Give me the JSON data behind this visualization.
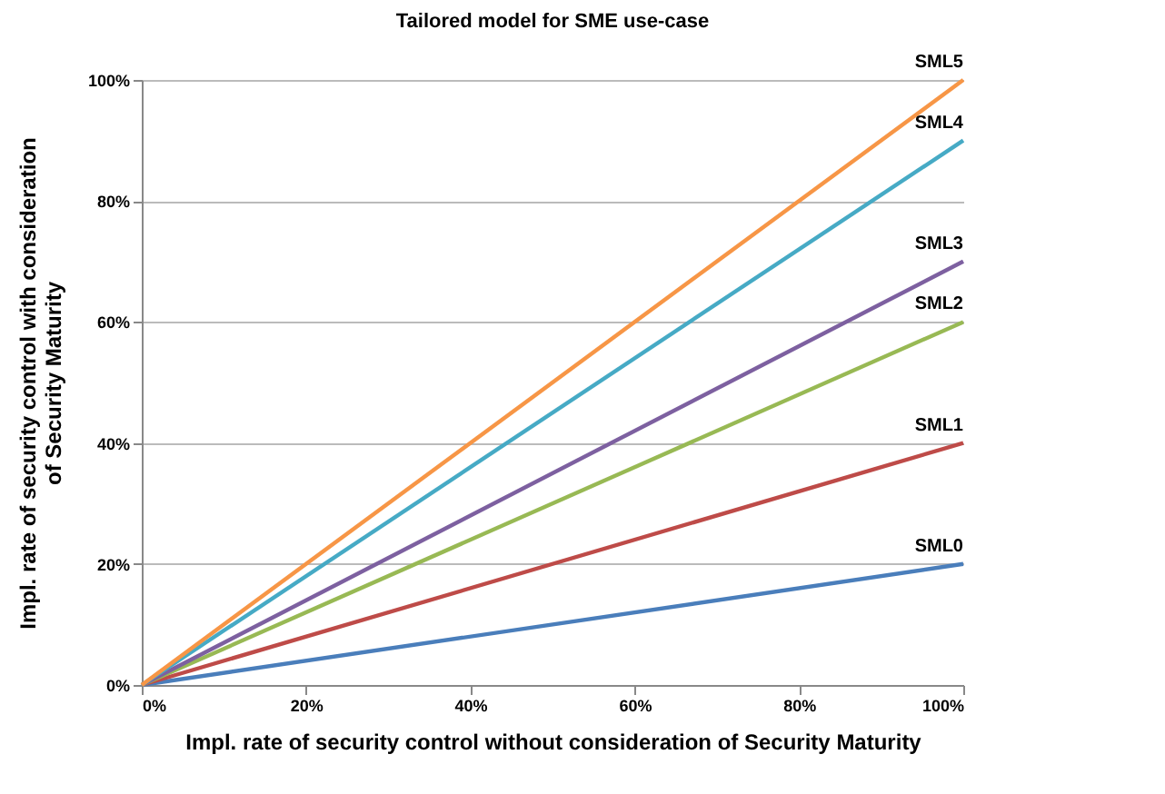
{
  "chart_data": {
    "type": "line",
    "title": "Tailored model for SME use-case",
    "xlabel": "Impl. rate of security control without consideration of Security Maturity",
    "ylabel": "Impl. rate of security control with  consideration of Security Maturity",
    "x": [
      0,
      100
    ],
    "series": [
      {
        "name": "SML0",
        "color": "#4a7ebb",
        "values": [
          0,
          20
        ]
      },
      {
        "name": "SML1",
        "color": "#be4b48",
        "values": [
          0,
          40
        ]
      },
      {
        "name": "SML2",
        "color": "#98b954",
        "values": [
          0,
          60
        ]
      },
      {
        "name": "SML3",
        "color": "#7d60a0",
        "values": [
          0,
          70
        ]
      },
      {
        "name": "SML4",
        "color": "#46aac5",
        "values": [
          0,
          90
        ]
      },
      {
        "name": "SML5",
        "color": "#f79646",
        "values": [
          0,
          100
        ]
      }
    ],
    "xlim": [
      0,
      100
    ],
    "ylim": [
      0,
      100
    ],
    "xticks": [
      {
        "value": 0,
        "label": "0%"
      },
      {
        "value": 20,
        "label": "20%"
      },
      {
        "value": 40,
        "label": "40%"
      },
      {
        "value": 60,
        "label": "60%"
      },
      {
        "value": 80,
        "label": "80%"
      },
      {
        "value": 100,
        "label": "100%"
      }
    ],
    "yticks": [
      {
        "value": 0,
        "label": "0%"
      },
      {
        "value": 20,
        "label": "20%"
      },
      {
        "value": 40,
        "label": "40%"
      },
      {
        "value": 60,
        "label": "60%"
      },
      {
        "value": 80,
        "label": "80%"
      },
      {
        "value": 100,
        "label": "100%"
      }
    ],
    "grid": "y",
    "legend": false,
    "marker": "none",
    "line_style": "solid"
  }
}
